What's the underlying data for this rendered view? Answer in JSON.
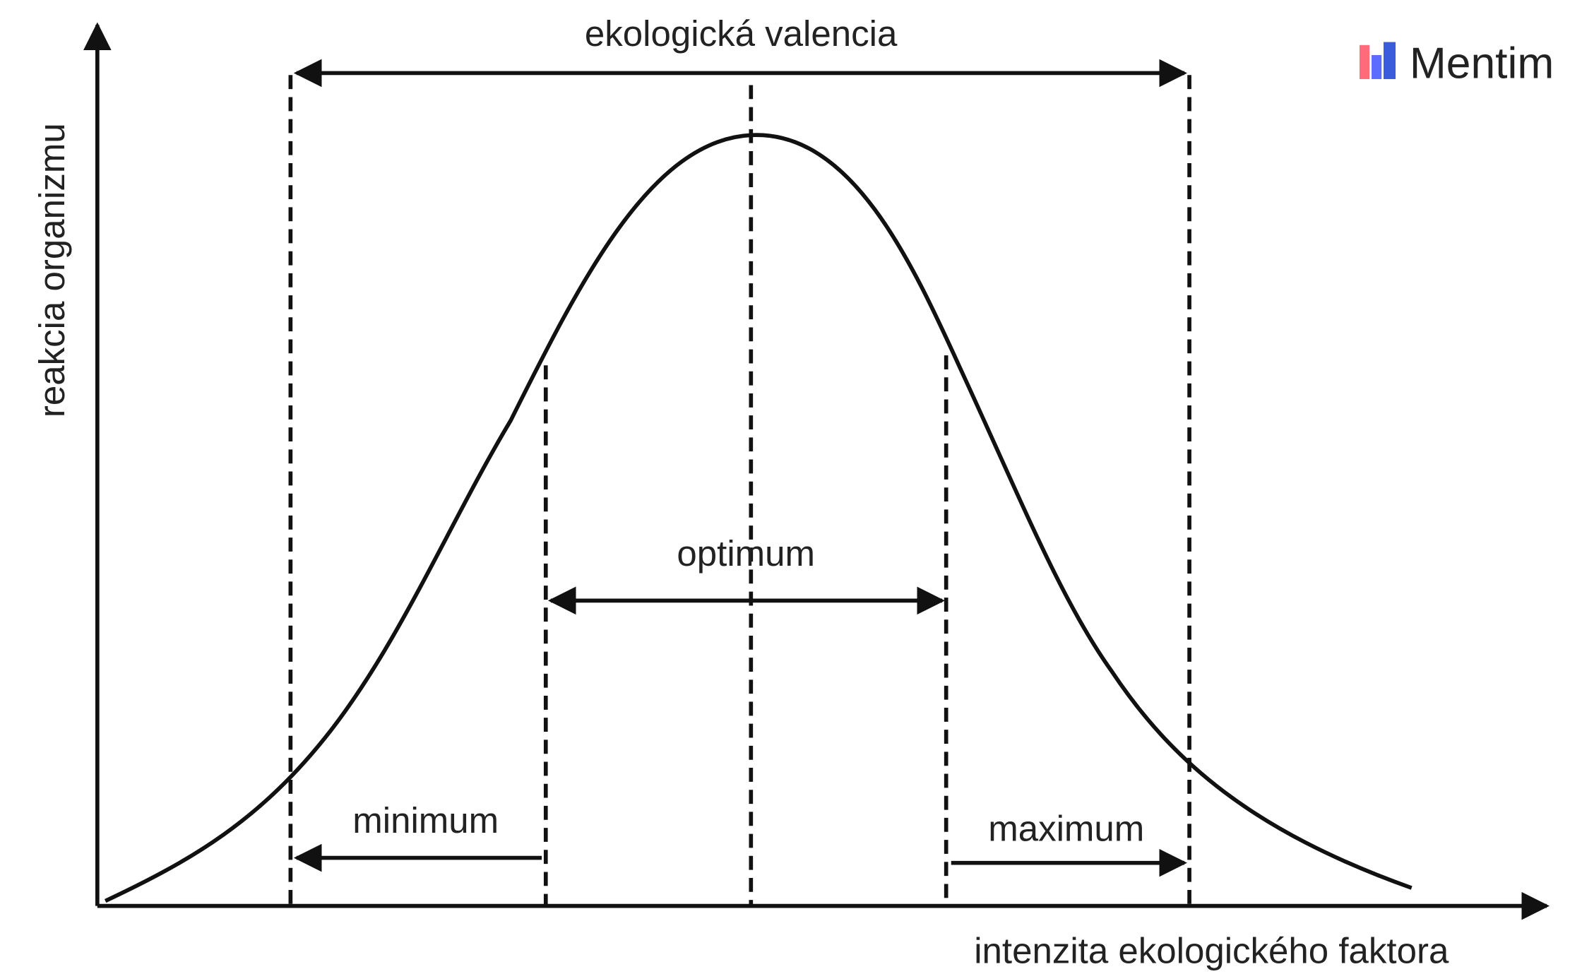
{
  "diagram": {
    "title": "ekologická valencia",
    "y_axis_label": "reakcia organizmu",
    "x_axis_label": "intenzita ekologického faktora",
    "labels": {
      "optimum": "optimum",
      "minimum": "minimum",
      "maximum": "maximum"
    },
    "brand": "Mentim"
  }
}
